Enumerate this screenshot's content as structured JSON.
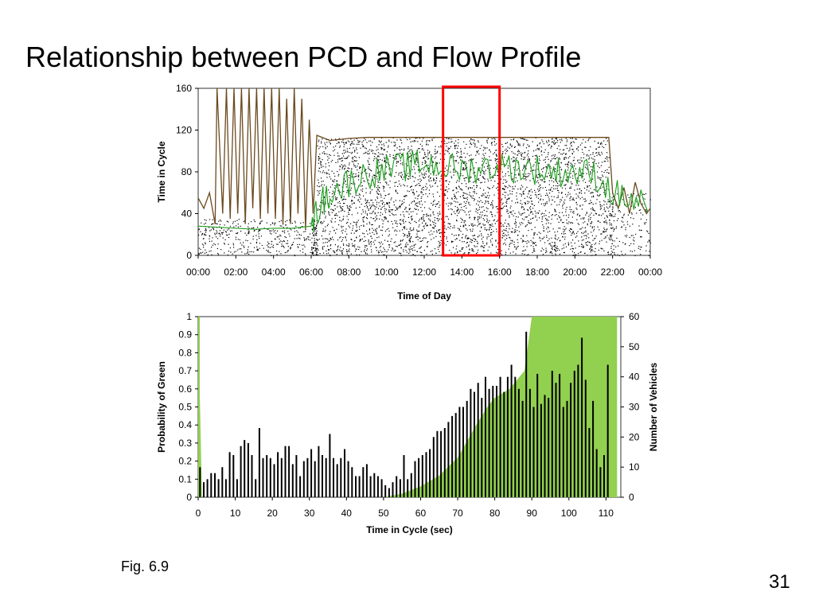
{
  "slide": {
    "title": "Relationship between PCD and Flow Profile",
    "caption": "Fig. 6.9",
    "page_number": "31"
  },
  "chart_data": [
    {
      "type": "scatter",
      "xlabel": "Time of Day",
      "ylabel": "Time in Cycle",
      "x_ticks": [
        "00:00",
        "02:00",
        "04:00",
        "06:00",
        "08:00",
        "10:00",
        "12:00",
        "14:00",
        "16:00",
        "18:00",
        "20:00",
        "22:00",
        "00:00"
      ],
      "y_ticks": [
        "0",
        "40",
        "80",
        "120",
        "160"
      ],
      "xlim": [
        0,
        24
      ],
      "ylim": [
        0,
        160
      ],
      "grid": false,
      "highlight_box": {
        "x_start": 13,
        "x_end": 16,
        "y_start": 0,
        "y_end": 160,
        "color": "#ff0000"
      },
      "cycle_length": [
        [
          0,
          55
        ],
        [
          0.3,
          45
        ],
        [
          0.6,
          60
        ],
        [
          0.9,
          30
        ],
        [
          1,
          160
        ],
        [
          1.3,
          40
        ],
        [
          1.5,
          160
        ],
        [
          1.7,
          35
        ],
        [
          1.9,
          160
        ],
        [
          2.1,
          40
        ],
        [
          2.3,
          160
        ],
        [
          2.5,
          30
        ],
        [
          2.7,
          160
        ],
        [
          2.9,
          45
        ],
        [
          3.1,
          160
        ],
        [
          3.3,
          35
        ],
        [
          3.5,
          160
        ],
        [
          3.7,
          40
        ],
        [
          3.9,
          160
        ],
        [
          4.1,
          35
        ],
        [
          4.3,
          160
        ],
        [
          4.5,
          30
        ],
        [
          4.7,
          150
        ],
        [
          4.9,
          30
        ],
        [
          5.1,
          160
        ],
        [
          5.3,
          40
        ],
        [
          5.5,
          150
        ],
        [
          5.7,
          25
        ],
        [
          5.9,
          130
        ],
        [
          6.1,
          40
        ],
        [
          6.3,
          115
        ],
        [
          7,
          110
        ],
        [
          8,
          112
        ],
        [
          9,
          113
        ],
        [
          10,
          113
        ],
        [
          11,
          113
        ],
        [
          12,
          113
        ],
        [
          13,
          113
        ],
        [
          14,
          113
        ],
        [
          15,
          113
        ],
        [
          16,
          113
        ],
        [
          17,
          113
        ],
        [
          18,
          113
        ],
        [
          19,
          113
        ],
        [
          20,
          113
        ],
        [
          21,
          113
        ],
        [
          21.8,
          113
        ],
        [
          22,
          60
        ],
        [
          22.3,
          45
        ],
        [
          22.6,
          65
        ],
        [
          22.9,
          40
        ],
        [
          23.2,
          70
        ],
        [
          23.5,
          50
        ],
        [
          23.8,
          40
        ],
        [
          24,
          45
        ]
      ],
      "green_start": [
        [
          0,
          28
        ],
        [
          1,
          27
        ],
        [
          2,
          26
        ],
        [
          3,
          25
        ],
        [
          4,
          26
        ],
        [
          5,
          26
        ],
        [
          6,
          28
        ],
        [
          6.5,
          50
        ],
        [
          7,
          60
        ],
        [
          8,
          70
        ],
        [
          9,
          78
        ],
        [
          10,
          82
        ],
        [
          11,
          85
        ],
        [
          12,
          88
        ],
        [
          13,
          85
        ],
        [
          14,
          82
        ],
        [
          15,
          84
        ],
        [
          16,
          85
        ],
        [
          17,
          84
        ],
        [
          18,
          82
        ],
        [
          19,
          80
        ],
        [
          20,
          80
        ],
        [
          21,
          78
        ],
        [
          22,
          60
        ],
        [
          23,
          52
        ],
        [
          24,
          48
        ]
      ],
      "arrivals_note": "dense arrival dots between 0 and cycle length, sparse overnight, dense 06:00–22:00"
    },
    {
      "type": "bar",
      "xlabel": "Time in Cycle (sec)",
      "ylabel": "Probability of Green",
      "ylabel_right": "Number of Vehicles",
      "x_ticks": [
        "0",
        "10",
        "20",
        "30",
        "40",
        "50",
        "60",
        "70",
        "80",
        "90",
        "100",
        "110"
      ],
      "y_ticks_left": [
        "0",
        "0.1",
        "0.2",
        "0.3",
        "0.4",
        "0.5",
        "0.6",
        "0.7",
        "0.8",
        "0.9",
        "1"
      ],
      "y_ticks_right": [
        "0",
        "10",
        "20",
        "30",
        "40",
        "50",
        "60"
      ],
      "xlim": [
        0,
        114
      ],
      "ylim_left": [
        0,
        1
      ],
      "ylim_right": [
        0,
        60
      ],
      "probability_of_green": [
        {
          "x": 0,
          "p": 1.0
        },
        {
          "x": 1,
          "p": 0.0
        },
        {
          "x": 50,
          "p": 0.0
        },
        {
          "x": 55,
          "p": 0.02
        },
        {
          "x": 60,
          "p": 0.06
        },
        {
          "x": 65,
          "p": 0.12
        },
        {
          "x": 70,
          "p": 0.22
        },
        {
          "x": 75,
          "p": 0.4
        },
        {
          "x": 78,
          "p": 0.5
        },
        {
          "x": 80,
          "p": 0.55
        },
        {
          "x": 84,
          "p": 0.6
        },
        {
          "x": 88,
          "p": 0.7
        },
        {
          "x": 90,
          "p": 1.0
        },
        {
          "x": 113,
          "p": 1.0
        }
      ],
      "vehicle_counts": [
        10,
        5,
        6,
        8,
        8,
        6,
        10,
        6,
        15,
        14,
        6,
        17,
        19,
        18,
        14,
        6,
        23,
        13,
        14,
        13,
        11,
        15,
        13,
        17,
        17,
        11,
        14,
        7,
        12,
        13,
        16,
        12,
        17,
        14,
        13,
        21,
        13,
        11,
        13,
        16,
        12,
        10,
        7,
        7,
        10,
        11,
        7,
        8,
        7,
        6,
        4,
        3,
        5,
        7,
        6,
        14,
        6,
        8,
        12,
        13,
        14,
        15,
        16,
        20,
        22,
        22,
        23,
        25,
        27,
        28,
        30,
        30,
        32,
        36,
        35,
        38,
        33,
        40,
        36,
        37,
        37,
        40,
        35,
        40,
        44,
        40,
        36,
        32,
        55,
        36,
        30,
        41,
        31,
        34,
        33,
        42,
        38,
        41,
        30,
        32,
        38,
        42,
        44,
        53,
        39,
        23,
        32,
        16,
        10,
        14,
        44
      ]
    }
  ]
}
